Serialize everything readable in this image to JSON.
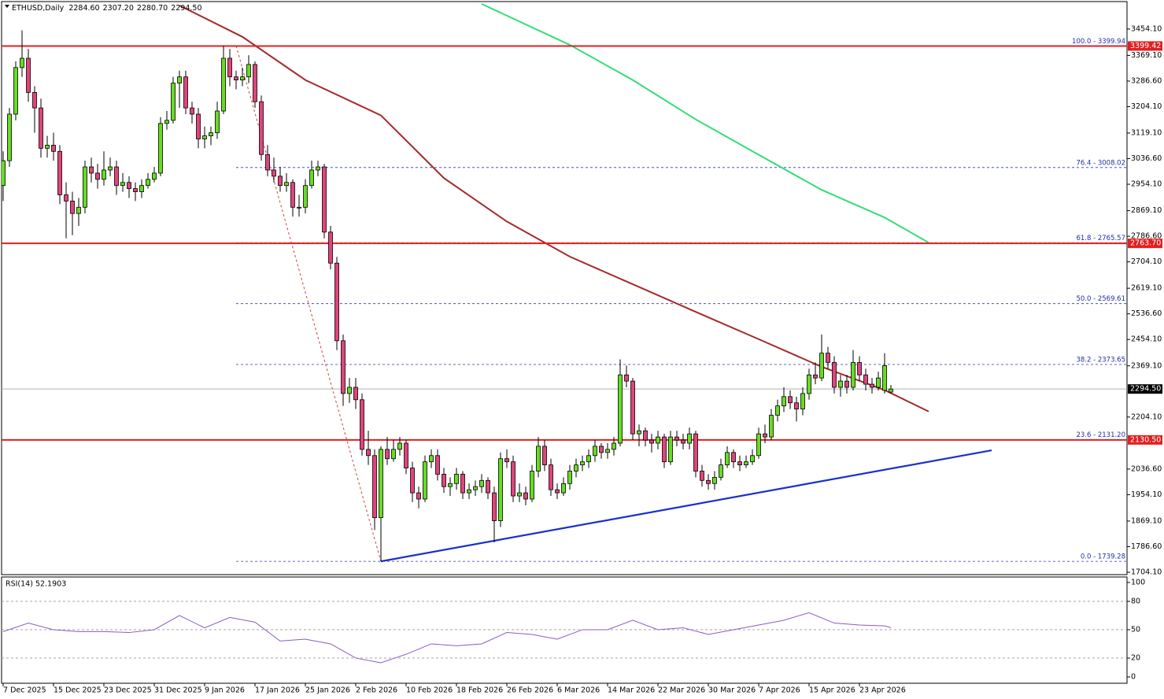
{
  "chart_data": {
    "type": "candlestick",
    "title": "ETHUSD,Daily",
    "ohlc_labels": [
      "2284.60",
      "2307.20",
      "2280.70",
      "2294.50"
    ],
    "up_color": "#66dd22",
    "down_color": "#e0457b",
    "ylim": [
      1696.5,
      3542.6
    ],
    "yticks": [
      {
        "value": 3454.1,
        "label": "3454.10"
      },
      {
        "value": 3369.1,
        "label": "3369.10"
      },
      {
        "value": 3286.6,
        "label": "3286.60"
      },
      {
        "value": 3204.1,
        "label": "3204.10"
      },
      {
        "value": 3119.1,
        "label": "3119.10"
      },
      {
        "value": 3036.6,
        "label": "3036.60"
      },
      {
        "value": 2954.1,
        "label": "2954.10"
      },
      {
        "value": 2869.1,
        "label": "2869.10"
      },
      {
        "value": 2786.6,
        "label": "2786.60"
      },
      {
        "value": 2704.1,
        "label": "2704.10"
      },
      {
        "value": 2619.1,
        "label": "2619.10"
      },
      {
        "value": 2536.6,
        "label": "2536.60"
      },
      {
        "value": 2454.1,
        "label": "2454.10"
      },
      {
        "value": 2369.1,
        "label": "2369.10"
      },
      {
        "value": 2204.1,
        "label": "2204.10"
      },
      {
        "value": 2036.6,
        "label": "2036.60"
      },
      {
        "value": 1954.1,
        "label": "1954.10"
      },
      {
        "value": 1869.1,
        "label": "1869.10"
      },
      {
        "value": 1786.6,
        "label": "1786.60"
      },
      {
        "value": 1704.1,
        "label": "1704.10"
      }
    ],
    "xticks": [
      "7 Dec 2025",
      "15 Dec 2025",
      "23 Dec 2025",
      "31 Dec 2025",
      "9 Jan 2026",
      "17 Jan 2026",
      "25 Jan 2026",
      "2 Feb 2026",
      "10 Feb 2026",
      "18 Feb 2026",
      "26 Feb 2026",
      "6 Mar 2026",
      "14 Mar 2026",
      "22 Mar 2026",
      "30 Mar 2026",
      "7 Apr 2026",
      "15 Apr 2026",
      "23 Apr 2026"
    ],
    "candles": [
      [
        2950,
        3060,
        2900,
        3030
      ],
      [
        3030,
        3200,
        3010,
        3180
      ],
      [
        3180,
        3350,
        3160,
        3330
      ],
      [
        3330,
        3450,
        3300,
        3360
      ],
      [
        3360,
        3390,
        3220,
        3250
      ],
      [
        3250,
        3270,
        3120,
        3200
      ],
      [
        3200,
        3230,
        3040,
        3070
      ],
      [
        3070,
        3110,
        3040,
        3080
      ],
      [
        3080,
        3120,
        3030,
        3060
      ],
      [
        3060,
        3080,
        2890,
        2920
      ],
      [
        2920,
        2960,
        2780,
        2900
      ],
      [
        2900,
        2930,
        2790,
        2860
      ],
      [
        2860,
        2910,
        2820,
        2880
      ],
      [
        2880,
        3030,
        2860,
        3010
      ],
      [
        3010,
        3040,
        2960,
        2990
      ],
      [
        2990,
        3020,
        2940,
        2970
      ],
      [
        2970,
        3060,
        2950,
        3000
      ],
      [
        3000,
        3040,
        2980,
        3010
      ],
      [
        3010,
        3030,
        2920,
        2950
      ],
      [
        2950,
        2990,
        2930,
        2960
      ],
      [
        2960,
        2980,
        2910,
        2940
      ],
      [
        2940,
        2960,
        2900,
        2930
      ],
      [
        2930,
        2970,
        2910,
        2950
      ],
      [
        2950,
        2990,
        2940,
        2970
      ],
      [
        2970,
        3010,
        2960,
        2990
      ],
      [
        2990,
        3170,
        2980,
        3150
      ],
      [
        3150,
        3190,
        3130,
        3160
      ],
      [
        3160,
        3300,
        3150,
        3280
      ],
      [
        3280,
        3320,
        3200,
        3300
      ],
      [
        3300,
        3320,
        3180,
        3200
      ],
      [
        3200,
        3220,
        3150,
        3180
      ],
      [
        3180,
        3200,
        3070,
        3100
      ],
      [
        3100,
        3140,
        3070,
        3110
      ],
      [
        3110,
        3140,
        3080,
        3120
      ],
      [
        3120,
        3220,
        3100,
        3190
      ],
      [
        3190,
        3400,
        3180,
        3360
      ],
      [
        3360,
        3390,
        3270,
        3300
      ],
      [
        3300,
        3320,
        3260,
        3290
      ],
      [
        3290,
        3330,
        3270,
        3300
      ],
      [
        3300,
        3370,
        3280,
        3340
      ],
      [
        3340,
        3350,
        3200,
        3220
      ],
      [
        3220,
        3240,
        3030,
        3050
      ],
      [
        3050,
        3080,
        2980,
        3000
      ],
      [
        3000,
        3040,
        2960,
        2980
      ],
      [
        2980,
        3010,
        2930,
        2950
      ],
      [
        2950,
        2990,
        2930,
        2960
      ],
      [
        2960,
        2970,
        2850,
        2880
      ],
      [
        2880,
        2920,
        2850,
        2880
      ],
      [
        2880,
        2970,
        2860,
        2950
      ],
      [
        2950,
        3030,
        2940,
        3000
      ],
      [
        3000,
        3030,
        2980,
        3010
      ],
      [
        3010,
        3020,
        2780,
        2800
      ],
      [
        2800,
        2820,
        2680,
        2700
      ],
      [
        2700,
        2720,
        2420,
        2450
      ],
      [
        2450,
        2470,
        2240,
        2280
      ],
      [
        2280,
        2330,
        2250,
        2300
      ],
      [
        2300,
        2330,
        2230,
        2260
      ],
      [
        2260,
        2280,
        2080,
        2100
      ],
      [
        2100,
        2160,
        2050,
        2080
      ],
      [
        2080,
        2100,
        1840,
        1880
      ],
      [
        1880,
        2110,
        1739,
        2100
      ],
      [
        2100,
        2140,
        2050,
        2070
      ],
      [
        2070,
        2130,
        2060,
        2100
      ],
      [
        2100,
        2140,
        2080,
        2120
      ],
      [
        2120,
        2130,
        2020,
        2040
      ],
      [
        2040,
        2060,
        1930,
        1960
      ],
      [
        1960,
        1980,
        1910,
        1940
      ],
      [
        1940,
        2080,
        1930,
        2060
      ],
      [
        2060,
        2100,
        2040,
        2080
      ],
      [
        2080,
        2100,
        2000,
        2020
      ],
      [
        2020,
        2040,
        1960,
        1980
      ],
      [
        1980,
        2010,
        1950,
        1990
      ],
      [
        1990,
        2040,
        1970,
        2020
      ],
      [
        2020,
        2030,
        1940,
        1960
      ],
      [
        1960,
        1990,
        1940,
        1970
      ],
      [
        1970,
        2000,
        1950,
        1980
      ],
      [
        1980,
        2020,
        1960,
        2000
      ],
      [
        2000,
        2010,
        1940,
        1960
      ],
      [
        1960,
        1980,
        1800,
        1870
      ],
      [
        1870,
        2090,
        1850,
        2070
      ],
      [
        2070,
        2100,
        2040,
        2060
      ],
      [
        2060,
        2080,
        1930,
        1950
      ],
      [
        1950,
        1990,
        1930,
        1960
      ],
      [
        1960,
        1980,
        1920,
        1940
      ],
      [
        1940,
        2050,
        1930,
        2030
      ],
      [
        2030,
        2140,
        2010,
        2110
      ],
      [
        2110,
        2130,
        2030,
        2050
      ],
      [
        2050,
        2070,
        1950,
        1970
      ],
      [
        1970,
        1990,
        1940,
        1960
      ],
      [
        1960,
        2010,
        1950,
        1990
      ],
      [
        1990,
        2050,
        1970,
        2030
      ],
      [
        2030,
        2070,
        2010,
        2050
      ],
      [
        2050,
        2080,
        2030,
        2060
      ],
      [
        2060,
        2100,
        2040,
        2080
      ],
      [
        2080,
        2130,
        2060,
        2110
      ],
      [
        2110,
        2120,
        2070,
        2090
      ],
      [
        2090,
        2120,
        2070,
        2100
      ],
      [
        2100,
        2140,
        2080,
        2120
      ],
      [
        2120,
        2390,
        2110,
        2340
      ],
      [
        2340,
        2370,
        2300,
        2320
      ],
      [
        2320,
        2330,
        2130,
        2150
      ],
      [
        2150,
        2180,
        2110,
        2160
      ],
      [
        2160,
        2170,
        2110,
        2130
      ],
      [
        2130,
        2150,
        2090,
        2120
      ],
      [
        2120,
        2160,
        2100,
        2140
      ],
      [
        2140,
        2150,
        2040,
        2060
      ],
      [
        2060,
        2160,
        2050,
        2140
      ],
      [
        2140,
        2160,
        2110,
        2130
      ],
      [
        2130,
        2150,
        2100,
        2120
      ],
      [
        2120,
        2170,
        2100,
        2150
      ],
      [
        2150,
        2160,
        2010,
        2030
      ],
      [
        2030,
        2050,
        1980,
        2000
      ],
      [
        2000,
        2020,
        1970,
        1990
      ],
      [
        1990,
        2030,
        1970,
        2010
      ],
      [
        2010,
        2070,
        2000,
        2050
      ],
      [
        2050,
        2110,
        2040,
        2090
      ],
      [
        2090,
        2100,
        2040,
        2060
      ],
      [
        2060,
        2080,
        2030,
        2050
      ],
      [
        2050,
        2080,
        2040,
        2060
      ],
      [
        2060,
        2100,
        2050,
        2080
      ],
      [
        2080,
        2170,
        2070,
        2150
      ],
      [
        2150,
        2180,
        2120,
        2140
      ],
      [
        2140,
        2230,
        2130,
        2210
      ],
      [
        2210,
        2260,
        2190,
        2240
      ],
      [
        2240,
        2300,
        2220,
        2270
      ],
      [
        2270,
        2290,
        2230,
        2250
      ],
      [
        2250,
        2270,
        2190,
        2230
      ],
      [
        2230,
        2300,
        2210,
        2280
      ],
      [
        2280,
        2360,
        2260,
        2340
      ],
      [
        2340,
        2380,
        2310,
        2330
      ],
      [
        2330,
        2470,
        2320,
        2410
      ],
      [
        2410,
        2430,
        2360,
        2380
      ],
      [
        2380,
        2400,
        2280,
        2300
      ],
      [
        2300,
        2340,
        2270,
        2320
      ],
      [
        2320,
        2340,
        2280,
        2300
      ],
      [
        2300,
        2420,
        2290,
        2380
      ],
      [
        2380,
        2400,
        2320,
        2340
      ],
      [
        2340,
        2360,
        2290,
        2310
      ],
      [
        2310,
        2330,
        2280,
        2300
      ],
      [
        2300,
        2350,
        2290,
        2330
      ],
      [
        2290,
        2410,
        2280,
        2370
      ],
      [
        2284.6,
        2307.2,
        2280.7,
        2294.5
      ]
    ],
    "moving_averages": [
      {
        "color": "#a52a2a",
        "x": [
          28,
          38,
          48,
          60,
          70,
          80,
          90,
          100,
          110,
          120,
          130,
          140,
          147
        ],
        "values": [
          3530,
          3429,
          3290,
          3176,
          2974,
          2834,
          2721,
          2632,
          2543,
          2455,
          2366,
          2291,
          2222
        ]
      },
      {
        "color": "#33dd77",
        "x": [
          76,
          90,
          100,
          110,
          120,
          130,
          140,
          147
        ],
        "values": [
          3535,
          3403,
          3290,
          3163,
          3049,
          2936,
          2847,
          2766
        ]
      }
    ],
    "trendlines": [
      {
        "color": "#1a2fcf",
        "x": [
          60,
          157
        ],
        "values": [
          1739.28,
          2097
        ]
      },
      {
        "color": "#d04040",
        "dashed": true,
        "x": [
          37,
          60
        ],
        "values": [
          3399.94,
          1739.28
        ]
      }
    ],
    "horizontal_lines": [
      {
        "value": 3399.42,
        "label": "3399.42"
      },
      {
        "value": 2763.7,
        "label": "2763.70"
      },
      {
        "value": 2130.5,
        "label": "2130.50"
      }
    ],
    "price_line": {
      "value": 2294.5,
      "label": "2294.50"
    },
    "fib_levels": [
      {
        "value": 3399.94,
        "label": "100.0 - 3399.94"
      },
      {
        "value": 3008.02,
        "label": "76.4 - 3008.02"
      },
      {
        "value": 2765.57,
        "label": "61.8 - 2765.57"
      },
      {
        "value": 2569.61,
        "label": "50.0 - 2569.61"
      },
      {
        "value": 2373.65,
        "label": "38.2 - 2373.65"
      },
      {
        "value": 2131.2,
        "label": "23.6 - 2131.20"
      },
      {
        "value": 1739.28,
        "label": "0.0 - 1739.28"
      }
    ],
    "rsi": {
      "title": "RSI(14) 52.1903",
      "color": "#8a5ac8",
      "ylim": [
        -6.7,
        105.8
      ],
      "yticks": [
        100,
        80,
        50,
        20,
        0
      ],
      "levels": [
        80,
        50,
        20
      ],
      "x": [
        0,
        4,
        8,
        12,
        16,
        20,
        24,
        28,
        32,
        36,
        40,
        44,
        48,
        52,
        56,
        60,
        64,
        68,
        72,
        76,
        80,
        84,
        88,
        92,
        96,
        100,
        104,
        108,
        112,
        116,
        120,
        124,
        128,
        132,
        136,
        140,
        141
      ],
      "values": [
        48,
        57,
        50,
        48,
        48,
        47,
        50,
        65,
        52,
        63,
        58,
        38,
        40,
        35,
        20,
        15,
        24,
        35,
        33,
        35,
        47,
        45,
        40,
        50,
        50,
        60,
        50,
        52,
        45,
        50,
        55,
        60,
        68,
        57,
        55,
        54,
        52.1903
      ]
    }
  }
}
